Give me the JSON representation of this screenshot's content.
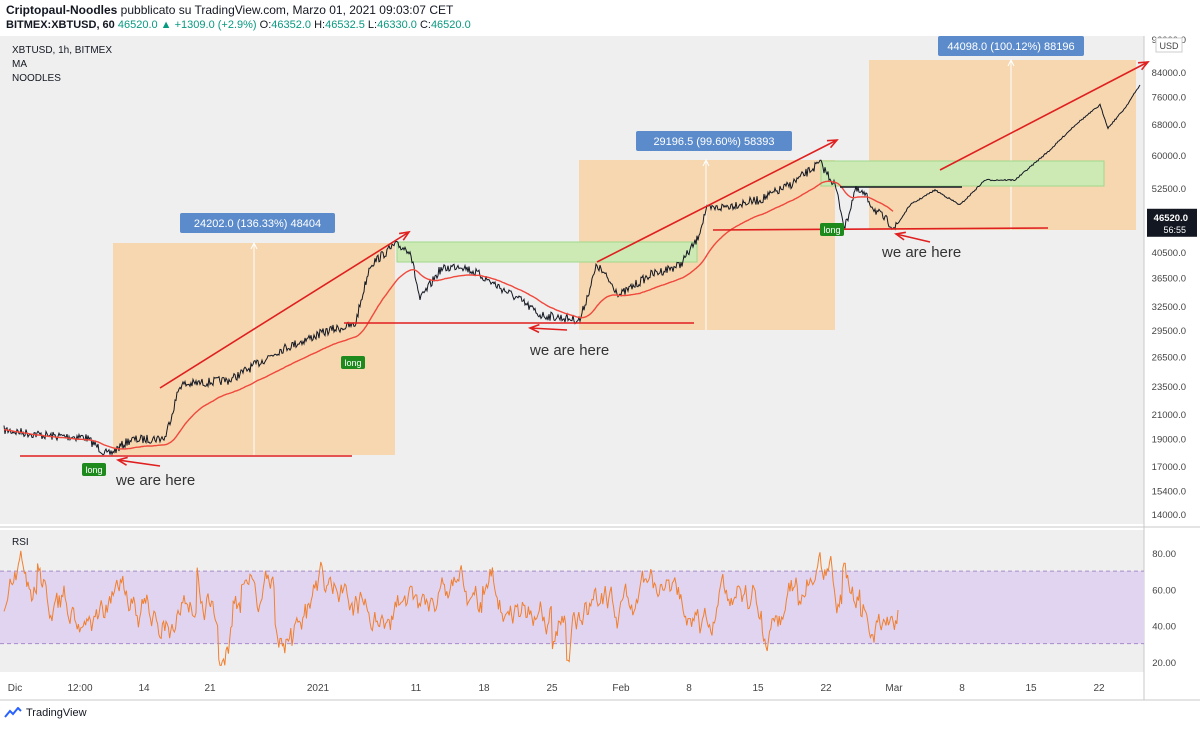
{
  "header": {
    "author": "Criptopaul-Noodles",
    "published": "pubblicato su TradingView.com, Marzo 01, 2021 09:03:07 CET",
    "symbol": "BITMEX:XBTUSD, 60",
    "change": "46520.0 ▲ +1309.0 (+2.9%)",
    "o_label": "O:",
    "o_value": "46352.0",
    "h_label": "H:",
    "h_value": "46532.5",
    "l_label": "L:",
    "l_value": "46330.0",
    "c_label": "C:",
    "c_value": "46520.0"
  },
  "legend": {
    "symbol_line": "XBTUSD, 1h, BITMEX",
    "ma": "MA",
    "noodles": "NOODLES"
  },
  "rsi_label": "RSI",
  "footer": {
    "brand": "TradingView",
    "logo_icon": "tradingview-logo-icon"
  },
  "chart_data": {
    "type": "line",
    "price_axis": {
      "currency": "USD",
      "scale": "log",
      "ticks": [
        "96000.0",
        "84000.0",
        "76000.0",
        "68000.0",
        "60000.0",
        "52500.0",
        "46520.0",
        "40500.0",
        "36500.0",
        "32500.0",
        "29500.0",
        "26500.0",
        "23500.0",
        "21000.0",
        "19000.0",
        "17000.0",
        "15400.0",
        "14000.0"
      ],
      "ylim": [
        13500,
        98000
      ],
      "current_price": "46520.0",
      "countdown": "56:55"
    },
    "time_axis": {
      "ticks": [
        "Dic",
        "12:00",
        "14",
        "21",
        "2021",
        "11",
        "18",
        "25",
        "Feb",
        "8",
        "15",
        "22",
        "Mar",
        "8",
        "15",
        "22"
      ]
    },
    "price_series": {
      "name": "XBTUSD",
      "points": [
        [
          "Dic",
          19200
        ],
        [
          "12:00",
          18800
        ],
        [
          "14",
          18700
        ],
        [
          "21",
          24500
        ],
        [
          "2021",
          29300
        ],
        [
          "2021",
          42000
        ],
        [
          "11",
          33500
        ],
        [
          "18",
          37000
        ],
        [
          "25",
          31000
        ],
        [
          "Feb",
          35500
        ],
        [
          "8",
          46000
        ],
        [
          "15",
          48500
        ],
        [
          "22",
          57500
        ],
        [
          "22",
          45000
        ],
        [
          "Mar",
          45000
        ],
        [
          "8",
          48500
        ],
        [
          "15",
          55500
        ],
        [
          "22",
          67000
        ],
        [
          "22",
          82000
        ]
      ]
    },
    "ma_series": {
      "name": "MA",
      "color": "#f0483c"
    },
    "rsi": {
      "ticks": [
        "80.00",
        "60.00",
        "40.00",
        "20.00"
      ],
      "ylim": [
        12,
        92
      ],
      "band": [
        30,
        70
      ]
    },
    "annotations": {
      "measures": [
        {
          "label": "24202.0 (136.33%) 48404"
        },
        {
          "label": "29196.5 (99.60%) 58393"
        },
        {
          "label": "44098.0 (100.12%) 88196"
        }
      ],
      "long_labels": [
        "long",
        "long",
        "long"
      ],
      "we_are_here": [
        "we are here",
        "we are here",
        "we are here"
      ]
    },
    "colors": {
      "price": "#131722",
      "ma": "#f0483c",
      "annotation_red": "#e01f1f",
      "measure_box": "#f6d7b0",
      "green_zone": "#cdeab5",
      "rsi": "#f08030",
      "rsi_band": "#e1d4f0",
      "measure_label": "#5b8bcb",
      "long_badge": "#1e8a1e"
    }
  }
}
